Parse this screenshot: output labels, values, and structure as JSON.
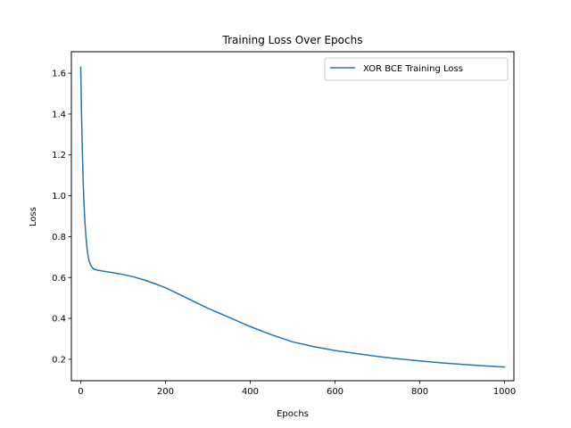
{
  "chart_data": {
    "type": "line",
    "title": "Training Loss Over Epochs",
    "xlabel": "Epochs",
    "ylabel": "Loss",
    "xlim": [
      -22,
      1022
    ],
    "ylim": [
      0.095,
      1.705
    ],
    "xticks": [
      0,
      200,
      400,
      600,
      800,
      1000
    ],
    "yticks": [
      0.2,
      0.4,
      0.6,
      0.8,
      1.0,
      1.2,
      1.4,
      1.6
    ],
    "ytick_labels": [
      "0.2",
      "0.4",
      "0.6",
      "0.8",
      "1.0",
      "1.2",
      "1.4",
      "1.6"
    ],
    "grid": false,
    "legend_position": "top-right",
    "series": [
      {
        "name": "XOR BCE Training Loss",
        "color": "#1f77b4",
        "x": [
          0,
          2,
          4,
          6,
          8,
          10,
          12,
          15,
          18,
          20,
          25,
          30,
          40,
          50,
          75,
          100,
          125,
          150,
          175,
          200,
          250,
          300,
          350,
          400,
          450,
          500,
          550,
          600,
          650,
          700,
          750,
          800,
          850,
          900,
          950,
          1000
        ],
        "y": [
          1.63,
          1.4,
          1.21,
          1.06,
          0.95,
          0.87,
          0.81,
          0.74,
          0.7,
          0.68,
          0.655,
          0.642,
          0.636,
          0.632,
          0.624,
          0.615,
          0.603,
          0.588,
          0.57,
          0.55,
          0.5,
          0.45,
          0.405,
          0.36,
          0.32,
          0.285,
          0.262,
          0.243,
          0.228,
          0.214,
          0.202,
          0.192,
          0.183,
          0.175,
          0.168,
          0.162
        ]
      }
    ]
  }
}
